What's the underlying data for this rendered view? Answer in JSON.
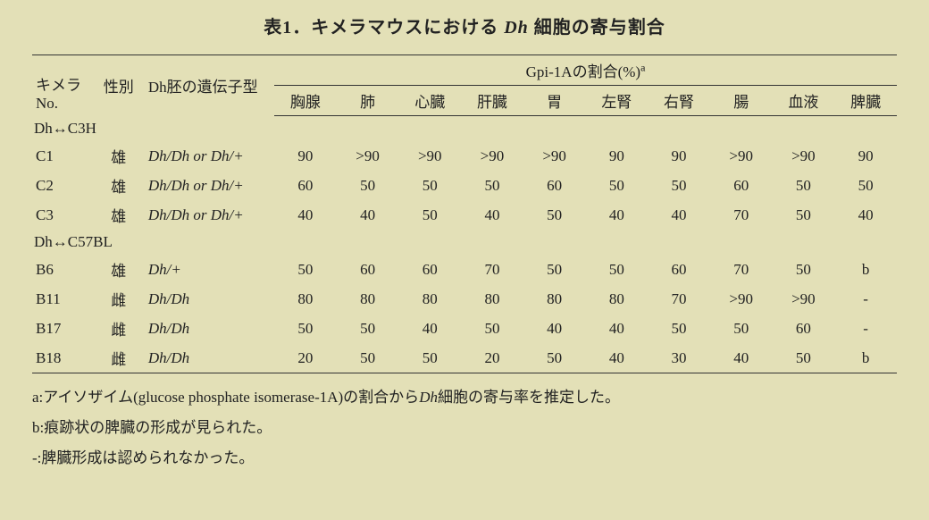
{
  "title_prefix": "表1．キメラマウスにおける ",
  "title_italic": "Dh",
  "title_suffix": " 細胞の寄与割合",
  "span_header": "Gpi-1Aの割合(%)",
  "span_header_sup": "a",
  "col_chimera": "キメラ",
  "col_chimera2": "No.",
  "col_sex": "性別",
  "col_genotype": "Dh胚の遺伝子型",
  "cols": [
    "胸腺",
    "肺",
    "心臓",
    "肝臓",
    "胃",
    "左腎",
    "右腎",
    "腸",
    "血液",
    "脾臓"
  ],
  "group1": "Dh↔C3H",
  "group2": "Dh↔C57BL",
  "rows1": [
    {
      "no": "C1",
      "sex": "雄",
      "gen": "Dh/Dh or Dh/+",
      "v": [
        "90",
        ">90",
        ">90",
        ">90",
        ">90",
        "90",
        "90",
        ">90",
        ">90",
        "90"
      ]
    },
    {
      "no": "C2",
      "sex": "雄",
      "gen": "Dh/Dh or Dh/+",
      "v": [
        "60",
        "50",
        "50",
        "50",
        "60",
        "50",
        "50",
        "60",
        "50",
        "50"
      ]
    },
    {
      "no": "C3",
      "sex": "雄",
      "gen": "Dh/Dh or Dh/+",
      "v": [
        "40",
        "40",
        "50",
        "40",
        "50",
        "40",
        "40",
        "70",
        "50",
        "40"
      ]
    }
  ],
  "rows2": [
    {
      "no": "B6",
      "sex": "雄",
      "gen": "Dh/+",
      "v": [
        "50",
        "60",
        "60",
        "70",
        "50",
        "50",
        "60",
        "70",
        "50",
        "b"
      ]
    },
    {
      "no": "B11",
      "sex": "雌",
      "gen": "Dh/Dh",
      "v": [
        "80",
        "80",
        "80",
        "80",
        "80",
        "80",
        "70",
        ">90",
        ">90",
        "-"
      ]
    },
    {
      "no": "B17",
      "sex": "雌",
      "gen": "Dh/Dh",
      "v": [
        "50",
        "50",
        "40",
        "50",
        "40",
        "40",
        "50",
        "50",
        "60",
        "-"
      ]
    },
    {
      "no": "B18",
      "sex": "雌",
      "gen": "Dh/Dh",
      "v": [
        "20",
        "50",
        "50",
        "20",
        "50",
        "40",
        "30",
        "40",
        "50",
        "b"
      ]
    }
  ],
  "footnote_a_pre": "a:アイソザイム(glucose phosphate isomerase-1A)の割合から",
  "footnote_a_it": "Dh",
  "footnote_a_post": "細胞の寄与率を推定した。",
  "footnote_b": "b:痕跡状の脾臓の形成が見られた。",
  "footnote_dash": "-:脾臓形成は認められなかった。"
}
